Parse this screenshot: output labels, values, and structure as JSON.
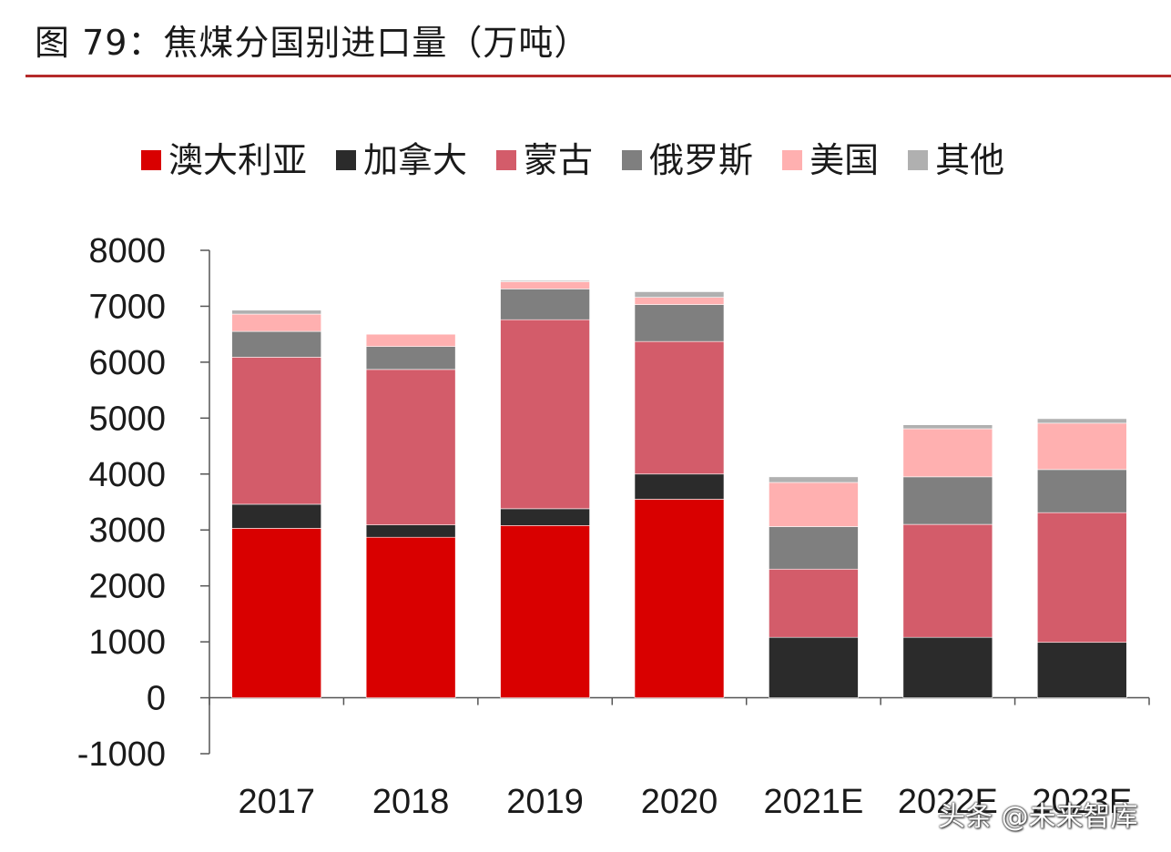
{
  "header": {
    "title": "图 79：焦煤分国别进口量（万吨）"
  },
  "watermark": {
    "text": "头条 @未来智库"
  },
  "chart_data": {
    "type": "bar",
    "stacked": true,
    "title": "图 79：焦煤分国别进口量（万吨）",
    "xlabel": "",
    "ylabel": "",
    "ylim": [
      -1000,
      8000
    ],
    "yticks": [
      -1000,
      0,
      1000,
      2000,
      3000,
      4000,
      5000,
      6000,
      7000,
      8000
    ],
    "grid": false,
    "legend_position": "top",
    "categories": [
      "2017",
      "2018",
      "2019",
      "2020",
      "2021E",
      "2022E",
      "2023E"
    ],
    "series": [
      {
        "name": "澳大利亚",
        "color": "#d90000",
        "values": [
          3030,
          2870,
          3080,
          3550,
          0,
          0,
          0
        ]
      },
      {
        "name": "加拿大",
        "color": "#2b2b2b",
        "values": [
          430,
          220,
          300,
          450,
          1080,
          1080,
          990
        ]
      },
      {
        "name": "蒙古",
        "color": "#d35c6a",
        "values": [
          2630,
          2780,
          3380,
          2370,
          1220,
          2020,
          2320
        ]
      },
      {
        "name": "俄罗斯",
        "color": "#7f7f7f",
        "values": [
          460,
          410,
          550,
          660,
          760,
          850,
          770
        ]
      },
      {
        "name": "美国",
        "color": "#ffb0b0",
        "values": [
          310,
          220,
          130,
          130,
          790,
          860,
          830
        ]
      },
      {
        "name": "其他",
        "color": "#b0b0b0",
        "values": [
          70,
          0,
          20,
          100,
          100,
          70,
          80
        ]
      }
    ]
  }
}
